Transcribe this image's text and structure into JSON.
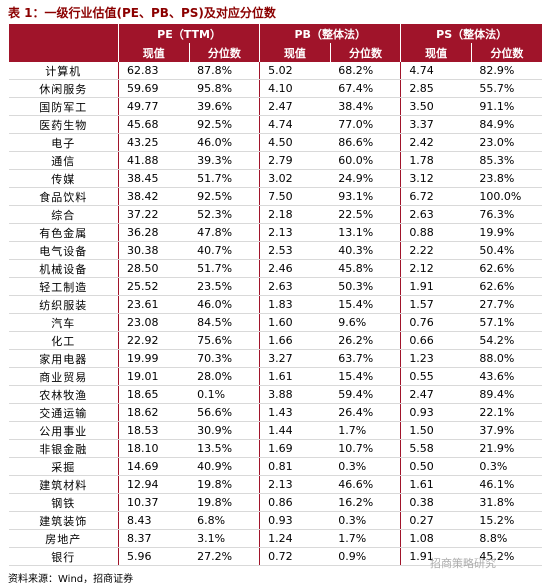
{
  "header": {
    "title": "表 1：一级行业估值(PE、PB、PS)及对应分位数"
  },
  "table": {
    "groups": [
      "PE（TTM）",
      "PB（整体法）",
      "PS（整体法）"
    ],
    "columns": [
      "现值",
      "分位数",
      "现值",
      "分位数",
      "现值",
      "分位数"
    ],
    "rows": [
      [
        "计算机",
        "62.83",
        "87.8%",
        "5.02",
        "68.2%",
        "4.74",
        "82.9%"
      ],
      [
        "休闲服务",
        "59.69",
        "95.8%",
        "4.10",
        "67.4%",
        "2.85",
        "55.7%"
      ],
      [
        "国防军工",
        "49.77",
        "39.6%",
        "2.47",
        "38.4%",
        "3.50",
        "91.1%"
      ],
      [
        "医药生物",
        "45.68",
        "92.5%",
        "4.74",
        "77.0%",
        "3.37",
        "84.9%"
      ],
      [
        "电子",
        "43.25",
        "46.0%",
        "4.50",
        "86.6%",
        "2.42",
        "23.0%"
      ],
      [
        "通信",
        "41.88",
        "39.3%",
        "2.79",
        "60.0%",
        "1.78",
        "85.3%"
      ],
      [
        "传媒",
        "38.45",
        "51.7%",
        "3.02",
        "24.9%",
        "3.12",
        "23.8%"
      ],
      [
        "食品饮料",
        "38.42",
        "92.5%",
        "7.50",
        "93.1%",
        "6.72",
        "100.0%"
      ],
      [
        "综合",
        "37.22",
        "52.3%",
        "2.18",
        "22.5%",
        "2.63",
        "76.3%"
      ],
      [
        "有色金属",
        "36.28",
        "47.8%",
        "2.13",
        "13.1%",
        "0.88",
        "19.9%"
      ],
      [
        "电气设备",
        "30.38",
        "40.7%",
        "2.53",
        "40.3%",
        "2.22",
        "50.4%"
      ],
      [
        "机械设备",
        "28.50",
        "51.7%",
        "2.46",
        "45.8%",
        "2.12",
        "62.6%"
      ],
      [
        "轻工制造",
        "25.52",
        "23.5%",
        "2.63",
        "50.3%",
        "1.91",
        "62.6%"
      ],
      [
        "纺织服装",
        "23.61",
        "46.0%",
        "1.83",
        "15.4%",
        "1.57",
        "27.7%"
      ],
      [
        "汽车",
        "23.08",
        "84.5%",
        "1.60",
        "9.6%",
        "0.76",
        "57.1%"
      ],
      [
        "化工",
        "22.92",
        "75.6%",
        "1.66",
        "26.2%",
        "0.66",
        "54.2%"
      ],
      [
        "家用电器",
        "19.99",
        "70.3%",
        "3.27",
        "63.7%",
        "1.23",
        "88.0%"
      ],
      [
        "商业贸易",
        "19.01",
        "28.0%",
        "1.61",
        "15.4%",
        "0.55",
        "43.6%"
      ],
      [
        "农林牧渔",
        "18.65",
        "0.1%",
        "3.88",
        "59.4%",
        "2.47",
        "89.4%"
      ],
      [
        "交通运输",
        "18.62",
        "56.6%",
        "1.43",
        "26.4%",
        "0.93",
        "22.1%"
      ],
      [
        "公用事业",
        "18.53",
        "30.9%",
        "1.44",
        "1.7%",
        "1.50",
        "37.9%"
      ],
      [
        "非银金融",
        "18.10",
        "13.5%",
        "1.69",
        "10.7%",
        "5.58",
        "21.9%"
      ],
      [
        "采掘",
        "14.69",
        "40.9%",
        "0.81",
        "0.3%",
        "0.50",
        "0.3%"
      ],
      [
        "建筑材料",
        "12.94",
        "19.8%",
        "2.13",
        "46.6%",
        "1.61",
        "46.1%"
      ],
      [
        "钢铁",
        "10.37",
        "19.8%",
        "0.86",
        "16.2%",
        "0.38",
        "31.8%"
      ],
      [
        "建筑装饰",
        "8.43",
        "6.8%",
        "0.93",
        "0.3%",
        "0.27",
        "15.2%"
      ],
      [
        "房地产",
        "8.37",
        "3.1%",
        "1.24",
        "1.7%",
        "1.08",
        "8.8%"
      ],
      [
        "银行",
        "5.96",
        "27.2%",
        "0.72",
        "0.9%",
        "1.91",
        "45.2%"
      ]
    ]
  },
  "footer": {
    "source": "资料来源：Wind，招商证券",
    "watermark": "招商策略研究"
  }
}
